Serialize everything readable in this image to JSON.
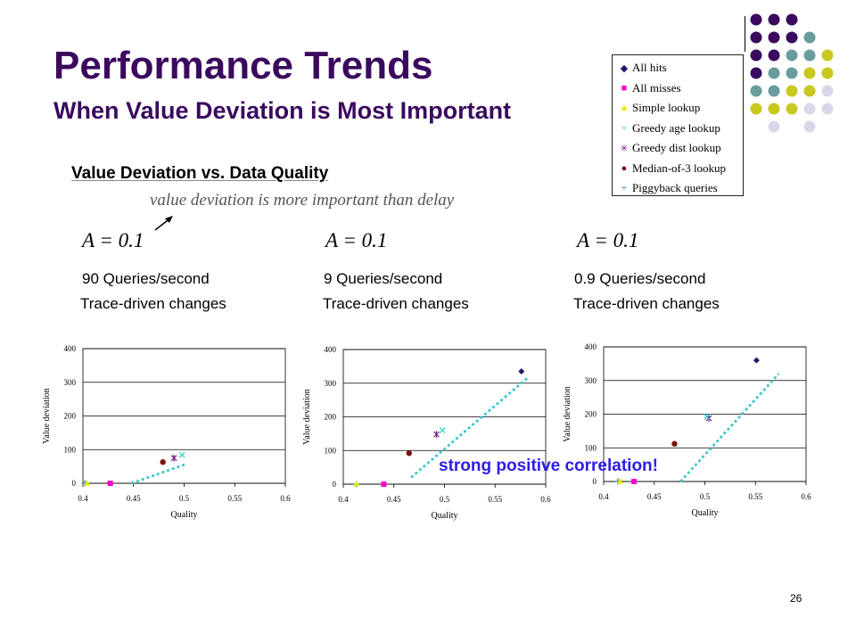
{
  "slide": {
    "title": "Performance Trends",
    "subtitle": "When Value Deviation is Most Important",
    "section_title": "Value Deviation vs. Data Quality",
    "section_note": "value deviation is more important than delay",
    "callout": "strong positive correlation!",
    "page_number": "26",
    "colors": {
      "title": "#3a0a5e",
      "callout": "#2e1ee6",
      "trend": "#40c8c8"
    }
  },
  "panels": [
    {
      "param": "A = 0.1",
      "rate": "90 Queries/second",
      "changes": "Trace-driven changes"
    },
    {
      "param": "A = 0.1",
      "rate": "9 Queries/second",
      "changes": "Trace-driven changes"
    },
    {
      "param": "A = 0.1",
      "rate": "0.9 Queries/second",
      "changes": "Trace-driven changes"
    }
  ],
  "legend": {
    "items": [
      {
        "label": "All hits",
        "marker": "diamond",
        "color": "#1a1a6e"
      },
      {
        "label": "All misses",
        "marker": "square",
        "color": "#ff00cc"
      },
      {
        "label": "Simple lookup",
        "marker": "triangle",
        "color": "#e8e800"
      },
      {
        "label": "Greedy age lookup",
        "marker": "x",
        "color": "#30d0d0"
      },
      {
        "label": "Greedy dist lookup",
        "marker": "star",
        "color": "#7a1a8a"
      },
      {
        "label": "Median-of-3 lookup",
        "marker": "circle",
        "color": "#7a1010"
      },
      {
        "label": "Piggyback queries",
        "marker": "plus",
        "color": "#2080c0"
      }
    ]
  },
  "chart_data": [
    {
      "type": "scatter",
      "xlabel": "Quality",
      "ylabel": "Value deviation",
      "xlim": [
        0.4,
        0.6
      ],
      "ylim": [
        0,
        400
      ],
      "xticks": [
        "0.4",
        "0.45",
        "0.5",
        "0.55",
        "0.6"
      ],
      "yticks": [
        "0",
        "100",
        "200",
        "300",
        "400"
      ],
      "grid": true,
      "points": [
        {
          "series": "Piggyback queries",
          "x": 0.402,
          "y": 0
        },
        {
          "series": "Simple lookup",
          "x": 0.404,
          "y": 0
        },
        {
          "series": "All misses",
          "x": 0.427,
          "y": 0
        },
        {
          "series": "Median-of-3 lookup",
          "x": 0.479,
          "y": 63
        },
        {
          "series": "Greedy dist lookup",
          "x": 0.49,
          "y": 75
        },
        {
          "series": "Greedy age lookup",
          "x": 0.498,
          "y": 84
        }
      ],
      "trend": {
        "x1": 0.448,
        "y1": 0,
        "x2": 0.502,
        "y2": 57
      }
    },
    {
      "type": "scatter",
      "xlabel": "Quality",
      "ylabel": "Value deviation",
      "xlim": [
        0.4,
        0.6
      ],
      "ylim": [
        0,
        400
      ],
      "xticks": [
        "0.4",
        "0.45",
        "0.5",
        "0.55",
        "0.6"
      ],
      "yticks": [
        "0",
        "100",
        "200",
        "300",
        "400"
      ],
      "grid": true,
      "points": [
        {
          "series": "Piggyback queries",
          "x": 0.413,
          "y": 0
        },
        {
          "series": "Simple lookup",
          "x": 0.413,
          "y": 0
        },
        {
          "series": "All misses",
          "x": 0.44,
          "y": 0
        },
        {
          "series": "Median-of-3 lookup",
          "x": 0.465,
          "y": 92
        },
        {
          "series": "Greedy dist lookup",
          "x": 0.492,
          "y": 148
        },
        {
          "series": "Greedy age lookup",
          "x": 0.498,
          "y": 160
        },
        {
          "series": "All hits",
          "x": 0.576,
          "y": 335
        }
      ],
      "trend": {
        "x1": 0.467,
        "y1": 20,
        "x2": 0.583,
        "y2": 318
      }
    },
    {
      "type": "scatter",
      "xlabel": "Quality",
      "ylabel": "Value deviation",
      "xlim": [
        0.4,
        0.6
      ],
      "ylim": [
        0,
        400
      ],
      "xticks": [
        "0.4",
        "0.45",
        "0.5",
        "0.55",
        "0.6"
      ],
      "yticks": [
        "0",
        "100",
        "200",
        "300",
        "400"
      ],
      "grid": true,
      "points": [
        {
          "series": "Piggyback queries",
          "x": 0.414,
          "y": 0
        },
        {
          "series": "Simple lookup",
          "x": 0.416,
          "y": 0
        },
        {
          "series": "All misses",
          "x": 0.43,
          "y": 0
        },
        {
          "series": "Median-of-3 lookup",
          "x": 0.47,
          "y": 112
        },
        {
          "series": "Greedy dist lookup",
          "x": 0.504,
          "y": 188
        },
        {
          "series": "Greedy age lookup",
          "x": 0.502,
          "y": 192
        },
        {
          "series": "All hits",
          "x": 0.551,
          "y": 360
        }
      ],
      "trend": {
        "x1": 0.476,
        "y1": 0,
        "x2": 0.573,
        "y2": 320
      }
    }
  ]
}
